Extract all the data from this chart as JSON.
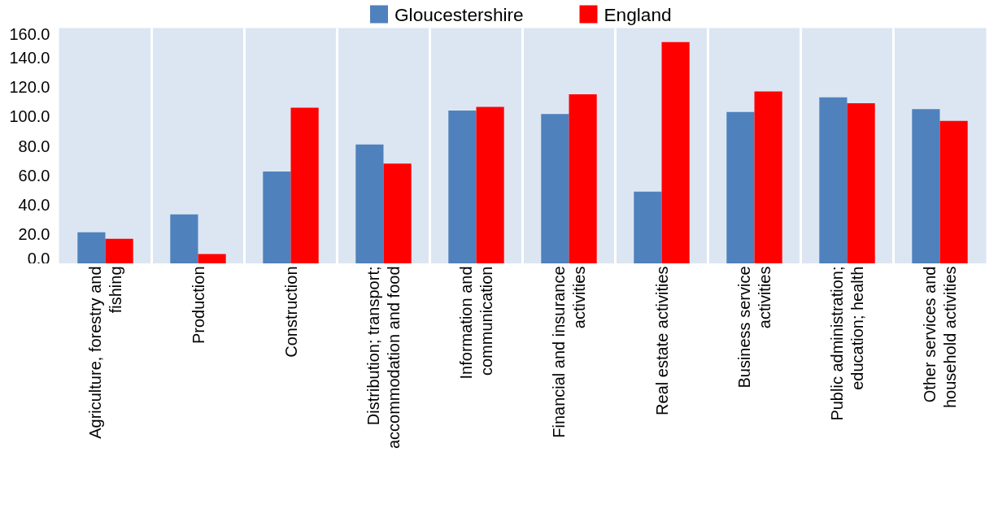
{
  "chart_data": {
    "type": "bar",
    "categories": [
      "Agriculture, forestry and fishing",
      "Production",
      "Construction",
      "Distribution; transport; accommodation and food",
      "Information and communication",
      "Financial and insurance activities",
      "Real estate activities",
      "Business service activities",
      "Public administration; education; health",
      "Other services and household activities"
    ],
    "series": [
      {
        "name": "Gloucestershire",
        "color": "#4f81bd",
        "values": [
          21.4,
          33.5,
          62.6,
          81,
          104,
          101.6,
          49,
          103,
          113,
          105
        ]
      },
      {
        "name": "England",
        "color": "#ff0000",
        "values": [
          17,
          6.6,
          106,
          68,
          106.5,
          115,
          150.5,
          117,
          109,
          97
        ]
      }
    ],
    "ylim": [
      0,
      160
    ],
    "yticks": [
      {
        "value": 0,
        "label": "0.0"
      },
      {
        "value": 20,
        "label": "20.0"
      },
      {
        "value": 40,
        "label": "40.0"
      },
      {
        "value": 60,
        "label": "60.0"
      },
      {
        "value": 80,
        "label": "80.0"
      },
      {
        "value": 100,
        "label": "100.0"
      },
      {
        "value": 120,
        "label": "120.0"
      },
      {
        "value": 140,
        "label": "140.0"
      },
      {
        "value": 160,
        "label": "160.0"
      }
    ],
    "grid": "x",
    "legend": "top"
  }
}
